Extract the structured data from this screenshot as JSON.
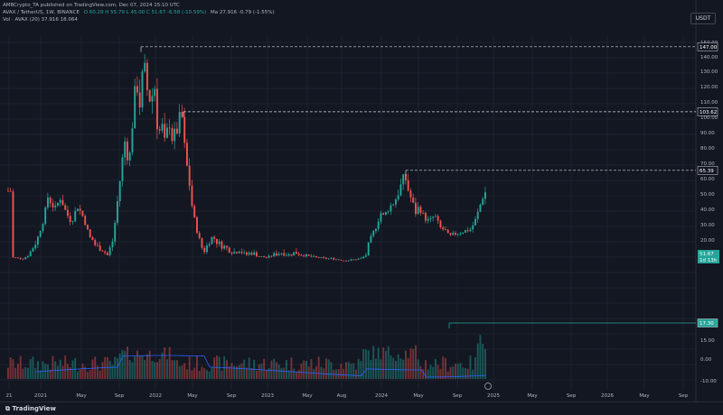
{
  "header": {
    "line1": "AMBCrypto_TA published on TradingView.com, Dec 07, 2024 15:10 UTC",
    "symbol": "AVAX / TetherUS, 1W, BINANCE",
    "ohlc": "O 60.29  H 55.79  L 45.00  C 51.67  -6.58 (-10.59%)",
    "ma": "Ma 27.916  -0.79 (-1.55%)",
    "vol": "Vol · AVAX (20)  37.916  18.064"
  },
  "currency_button": "USDT",
  "logo_text": "TradingView",
  "chart_data": {
    "type": "candlestick",
    "symbol": "AVAX/USDT",
    "timeframe": "1W",
    "y_ticks": [
      "150.00",
      "140.00",
      "130.00",
      "120.00",
      "110.00",
      "100.00",
      "90.00",
      "80.00",
      "70.00",
      "60.00",
      "50.00",
      "40.00",
      "30.00",
      "20.00",
      "15.00",
      "0.00",
      "-10.00"
    ],
    "x_ticks": [
      "21",
      "2021",
      "May",
      "Sep",
      "2022",
      "May",
      "Sep",
      "2023",
      "May",
      "Aug",
      "2024",
      "May",
      "Sep",
      "2025",
      "May",
      "Sep",
      "2026",
      "May",
      "Sep"
    ],
    "levels": [
      {
        "label": "147.00",
        "value": 147.0,
        "color": "#d1d4dc"
      },
      {
        "label": "103.62",
        "value": 103.62,
        "color": "#d1d4dc"
      },
      {
        "label": "65.39",
        "value": 65.39,
        "color": "#d1d4dc"
      },
      {
        "label": "17.30",
        "value": 17.3,
        "color": "#26a69a"
      }
    ],
    "last_price": {
      "label": "51.67",
      "sub": "1d 13h",
      "value": 51.67
    }
  },
  "colors": {
    "up": "#26a69a",
    "down": "#ef5350",
    "ma": "#2962ff",
    "grid": "#1e222d"
  }
}
